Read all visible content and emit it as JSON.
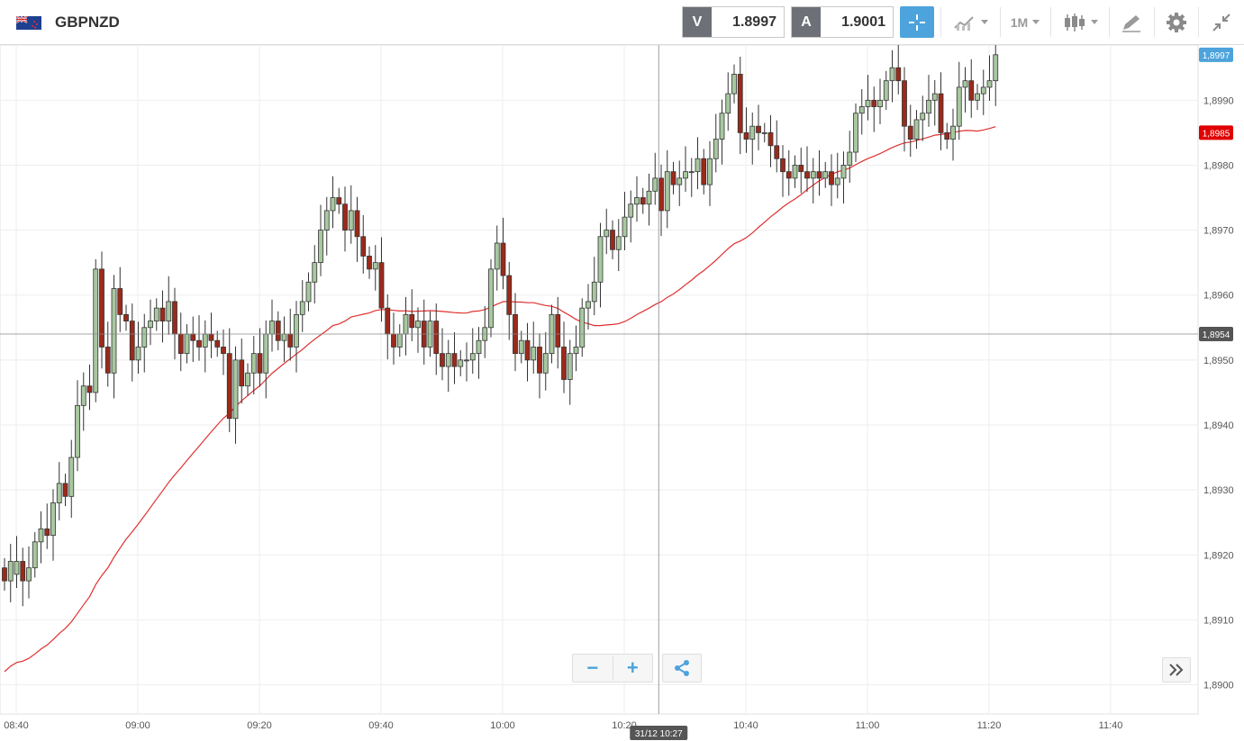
{
  "header": {
    "symbol": "GBPNZD",
    "flag_icon": "uk-nz-flag-icon",
    "sell": {
      "letter": "V",
      "price": "1.8997"
    },
    "buy": {
      "letter": "A",
      "price": "1.9001"
    },
    "period_label": "1M",
    "accent": "#4da3dc"
  },
  "controls": {
    "zoom_out": "−",
    "zoom_in": "+"
  },
  "chart_data": {
    "type": "candlestick",
    "instrument": "GBPNZD",
    "timeframe": "1M",
    "x_ticks": [
      "08:40",
      "09:00",
      "09:20",
      "09:40",
      "10:00",
      "10:20",
      "10:40",
      "11:00",
      "11:20",
      "11:40"
    ],
    "y_ticks": [
      "1,8900",
      "1,8910",
      "1,8920",
      "1,8930",
      "1,8940",
      "1,8950",
      "1,8960",
      "1,8970",
      "1,8980",
      "1,8990"
    ],
    "ylim": [
      1.88955,
      1.89985
    ],
    "grid": true,
    "crosshair": {
      "time_label": "31/12 10:27",
      "price_label": "1,8954",
      "price": 1.8954
    },
    "current_price": {
      "label": "1,8997",
      "value": 1.8997
    },
    "ma_value": {
      "label": "1,8985",
      "value": 1.8985
    },
    "colors": {
      "up": "#a8c8a0",
      "down": "#9b2a1a",
      "ma": "#e03030",
      "current": "#4da3dc",
      "ma_tag": "#e00000",
      "crosshair_tag": "#555555"
    },
    "candles_start": "08:40",
    "candles_open_close": [
      [
        1.8918,
        1.8916
      ],
      [
        1.8916,
        1.8919
      ],
      [
        1.8917,
        1.8919
      ],
      [
        1.8919,
        1.8916
      ],
      [
        1.8916,
        1.8918
      ],
      [
        1.8918,
        1.8922
      ],
      [
        1.8922,
        1.8924
      ],
      [
        1.8924,
        1.8923
      ],
      [
        1.8923,
        1.8928
      ],
      [
        1.8928,
        1.8931
      ],
      [
        1.8931,
        1.8929
      ],
      [
        1.8929,
        1.8935
      ],
      [
        1.8935,
        1.8943
      ],
      [
        1.8943,
        1.8946
      ],
      [
        1.8946,
        1.8945
      ],
      [
        1.8945,
        1.8964
      ],
      [
        1.8964,
        1.8952
      ],
      [
        1.8952,
        1.8948
      ],
      [
        1.8948,
        1.8961
      ],
      [
        1.8961,
        1.8957
      ],
      [
        1.8957,
        1.8956
      ],
      [
        1.8956,
        1.895
      ],
      [
        1.895,
        1.8952
      ],
      [
        1.8952,
        1.8955
      ],
      [
        1.8955,
        1.8956
      ],
      [
        1.8956,
        1.8958
      ],
      [
        1.8958,
        1.8956
      ],
      [
        1.8956,
        1.8959
      ],
      [
        1.8959,
        1.8954
      ],
      [
        1.8954,
        1.8951
      ],
      [
        1.8951,
        1.8954
      ],
      [
        1.8954,
        1.8953
      ],
      [
        1.8953,
        1.8952
      ],
      [
        1.8952,
        1.8954
      ],
      [
        1.8954,
        1.8953
      ],
      [
        1.8953,
        1.8952
      ],
      [
        1.8952,
        1.8951
      ],
      [
        1.8951,
        1.8941
      ],
      [
        1.8941,
        1.895
      ],
      [
        1.895,
        1.8946
      ],
      [
        1.8946,
        1.8948
      ],
      [
        1.8948,
        1.8951
      ],
      [
        1.8951,
        1.8948
      ],
      [
        1.8948,
        1.8954
      ],
      [
        1.8954,
        1.8956
      ],
      [
        1.8956,
        1.8953
      ],
      [
        1.8953,
        1.8954
      ],
      [
        1.8954,
        1.8952
      ],
      [
        1.8952,
        1.8957
      ],
      [
        1.8957,
        1.8959
      ],
      [
        1.8959,
        1.8962
      ],
      [
        1.8962,
        1.8965
      ],
      [
        1.8965,
        1.897
      ],
      [
        1.897,
        1.8973
      ],
      [
        1.8973,
        1.8975
      ],
      [
        1.8975,
        1.8974
      ],
      [
        1.8974,
        1.897
      ],
      [
        1.897,
        1.8973
      ],
      [
        1.8973,
        1.8969
      ],
      [
        1.8969,
        1.8966
      ],
      [
        1.8966,
        1.8964
      ],
      [
        1.8964,
        1.8965
      ],
      [
        1.8965,
        1.8958
      ],
      [
        1.8958,
        1.8954
      ],
      [
        1.8954,
        1.8952
      ],
      [
        1.8952,
        1.8954
      ],
      [
        1.8954,
        1.8957
      ],
      [
        1.8957,
        1.8955
      ],
      [
        1.8955,
        1.8956
      ],
      [
        1.8956,
        1.8952
      ],
      [
        1.8952,
        1.8956
      ],
      [
        1.8956,
        1.8951
      ],
      [
        1.8951,
        1.8949
      ],
      [
        1.8949,
        1.8951
      ],
      [
        1.8951,
        1.8949
      ],
      [
        1.8949,
        1.895
      ],
      [
        1.895,
        1.895
      ],
      [
        1.895,
        1.8951
      ],
      [
        1.8951,
        1.8953
      ],
      [
        1.8953,
        1.8955
      ],
      [
        1.8955,
        1.8964
      ],
      [
        1.8964,
        1.8968
      ],
      [
        1.8968,
        1.8963
      ],
      [
        1.8963,
        1.8957
      ],
      [
        1.8957,
        1.8951
      ],
      [
        1.8951,
        1.8953
      ],
      [
        1.8953,
        1.895
      ],
      [
        1.895,
        1.8952
      ],
      [
        1.8952,
        1.8948
      ],
      [
        1.8948,
        1.8951
      ],
      [
        1.8951,
        1.8957
      ],
      [
        1.8957,
        1.8952
      ],
      [
        1.8952,
        1.8947
      ],
      [
        1.8947,
        1.8951
      ],
      [
        1.8951,
        1.8952
      ],
      [
        1.8952,
        1.8958
      ],
      [
        1.8958,
        1.8959
      ],
      [
        1.8959,
        1.8962
      ],
      [
        1.8962,
        1.8969
      ],
      [
        1.8969,
        1.897
      ],
      [
        1.897,
        1.8967
      ],
      [
        1.8967,
        1.8969
      ],
      [
        1.8969,
        1.8972
      ],
      [
        1.8972,
        1.8974
      ],
      [
        1.8974,
        1.8975
      ],
      [
        1.8975,
        1.8974
      ],
      [
        1.8974,
        1.8976
      ],
      [
        1.8976,
        1.8978
      ],
      [
        1.8978,
        1.8973
      ],
      [
        1.8973,
        1.8979
      ],
      [
        1.8979,
        1.8977
      ],
      [
        1.8977,
        1.8978
      ],
      [
        1.8978,
        1.8979
      ],
      [
        1.8979,
        1.8979
      ],
      [
        1.8979,
        1.8981
      ],
      [
        1.8981,
        1.8977
      ],
      [
        1.8977,
        1.8981
      ],
      [
        1.8981,
        1.8984
      ],
      [
        1.8984,
        1.8988
      ],
      [
        1.8988,
        1.8991
      ],
      [
        1.8991,
        1.8994
      ],
      [
        1.8994,
        1.8985
      ],
      [
        1.8985,
        1.8984
      ],
      [
        1.8984,
        1.8986
      ],
      [
        1.8986,
        1.8985
      ],
      [
        1.8985,
        1.8985
      ],
      [
        1.8985,
        1.8983
      ],
      [
        1.8983,
        1.8981
      ],
      [
        1.8981,
        1.8979
      ],
      [
        1.8979,
        1.8978
      ],
      [
        1.8978,
        1.898
      ],
      [
        1.898,
        1.8979
      ],
      [
        1.8979,
        1.8978
      ],
      [
        1.8978,
        1.8979
      ],
      [
        1.8979,
        1.8978
      ],
      [
        1.8978,
        1.8979
      ],
      [
        1.8979,
        1.8977
      ],
      [
        1.8977,
        1.8978
      ],
      [
        1.8978,
        1.898
      ],
      [
        1.898,
        1.8982
      ],
      [
        1.8982,
        1.8988
      ],
      [
        1.8988,
        1.8989
      ],
      [
        1.8989,
        1.899
      ],
      [
        1.899,
        1.8989
      ],
      [
        1.8989,
        1.899
      ],
      [
        1.899,
        1.8993
      ],
      [
        1.8993,
        1.8995
      ],
      [
        1.8995,
        1.8993
      ],
      [
        1.8993,
        1.8986
      ],
      [
        1.8986,
        1.8984
      ],
      [
        1.8984,
        1.8987
      ],
      [
        1.8987,
        1.8988
      ],
      [
        1.8988,
        1.899
      ],
      [
        1.899,
        1.8991
      ],
      [
        1.8991,
        1.8985
      ],
      [
        1.8985,
        1.8984
      ],
      [
        1.8984,
        1.8986
      ],
      [
        1.8986,
        1.8992
      ],
      [
        1.8992,
        1.8993
      ],
      [
        1.8993,
        1.899
      ],
      [
        1.899,
        1.8991
      ],
      [
        1.8991,
        1.8992
      ],
      [
        1.8992,
        1.8993
      ],
      [
        1.8993,
        1.8997
      ]
    ]
  }
}
